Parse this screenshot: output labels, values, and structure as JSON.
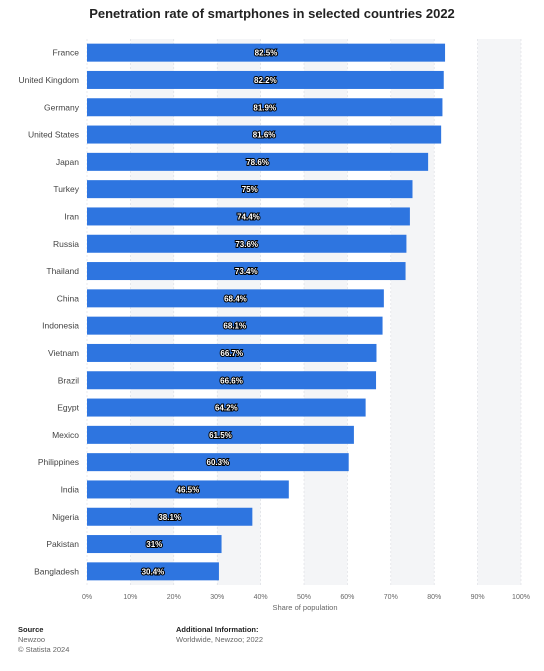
{
  "chart_data": {
    "type": "bar",
    "orientation": "horizontal",
    "title": "Penetration rate of smartphones in selected countries 2022",
    "xlabel": "Share of population",
    "ylabel": "",
    "categories": [
      "France",
      "United Kingdom",
      "Germany",
      "United States",
      "Japan",
      "Turkey",
      "Iran",
      "Russia",
      "Thailand",
      "China",
      "Indonesia",
      "Vietnam",
      "Brazil",
      "Egypt",
      "Mexico",
      "Philippines",
      "India",
      "Nigeria",
      "Pakistan",
      "Bangladesh"
    ],
    "values": [
      82.5,
      82.2,
      81.9,
      81.6,
      78.6,
      75,
      74.4,
      73.6,
      73.4,
      68.4,
      68.1,
      66.7,
      66.6,
      64.2,
      61.5,
      60.3,
      46.5,
      38.1,
      31,
      30.4
    ],
    "value_labels": [
      "82.5%",
      "82.2%",
      "81.9%",
      "81.6%",
      "78.6%",
      "75%",
      "74.4%",
      "73.6%",
      "73.4%",
      "68.4%",
      "68.1%",
      "66.7%",
      "66.6%",
      "64.2%",
      "61.5%",
      "60.3%",
      "46.5%",
      "38.1%",
      "31%",
      "30.4%"
    ],
    "xlim": [
      0,
      100
    ],
    "x_ticks": [
      0,
      10,
      20,
      30,
      40,
      50,
      60,
      70,
      80,
      90,
      100
    ],
    "x_tick_labels": [
      "0%",
      "10%",
      "20%",
      "30%",
      "40%",
      "50%",
      "60%",
      "70%",
      "80%",
      "90%",
      "100%"
    ],
    "grid": true,
    "colors": {
      "bar": "#2e75e0",
      "grid_band": "#f4f5f7"
    }
  },
  "footer": {
    "source_heading": "Source",
    "source_lines": [
      "Newzoo",
      "© Statista 2024"
    ],
    "info_heading": "Additional Information:",
    "info_text": "Worldwide, Newzoo; 2022"
  }
}
